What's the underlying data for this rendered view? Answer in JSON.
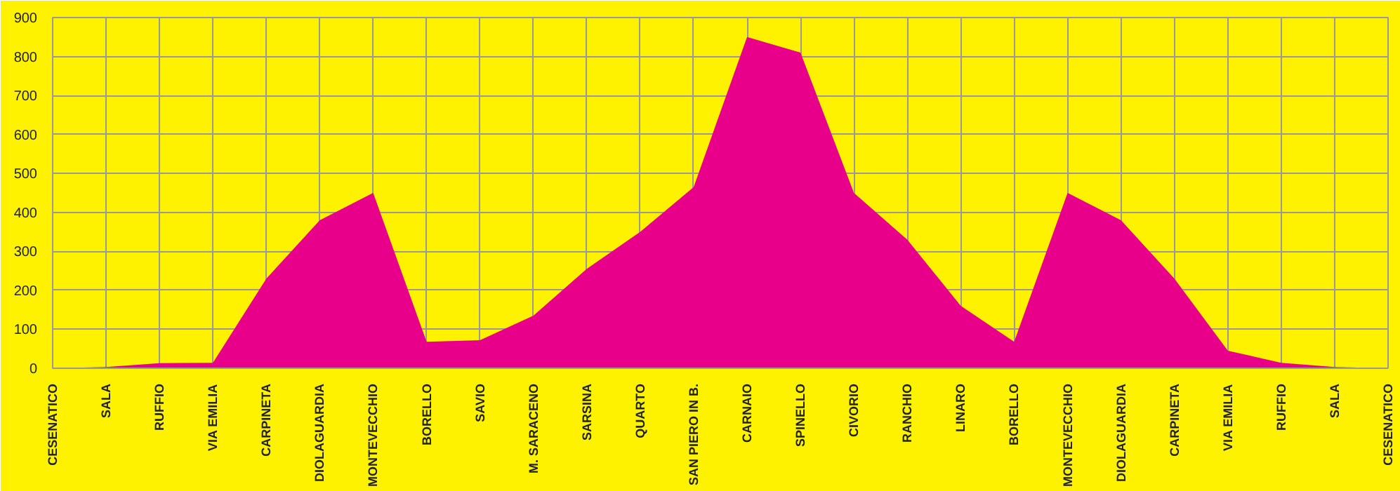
{
  "chart_data": {
    "type": "area",
    "categories": [
      "CESENATICO",
      "SALA",
      "RUFFIO",
      "VIA EMILIA",
      "CARPINETA",
      "DIOLAGUARDIA",
      "MONTEVECCHIO",
      "BORELLO",
      "SAVIO",
      "M. SARACENO",
      "SARSINA",
      "QUARTO",
      "SAN PIERO IN B.",
      "CARNAIO",
      "SPINELLO",
      "CIVORIO",
      "RANCHIO",
      "LINARO",
      "BORELLO",
      "MONTEVECCHIO",
      "DIOLAGUARDIA",
      "CARPINETA",
      "VIA EMILIA",
      "RUFFIO",
      "SALA",
      "CESENATICO"
    ],
    "values": [
      0,
      3,
      13,
      14,
      230,
      380,
      450,
      68,
      72,
      135,
      255,
      350,
      465,
      850,
      810,
      450,
      330,
      160,
      68,
      450,
      380,
      230,
      45,
      14,
      3,
      0
    ],
    "color": "#e9008a",
    "ylim": [
      0,
      900
    ],
    "yticks": [
      0,
      100,
      200,
      300,
      400,
      500,
      600,
      700,
      800,
      900
    ],
    "grid": true
  }
}
